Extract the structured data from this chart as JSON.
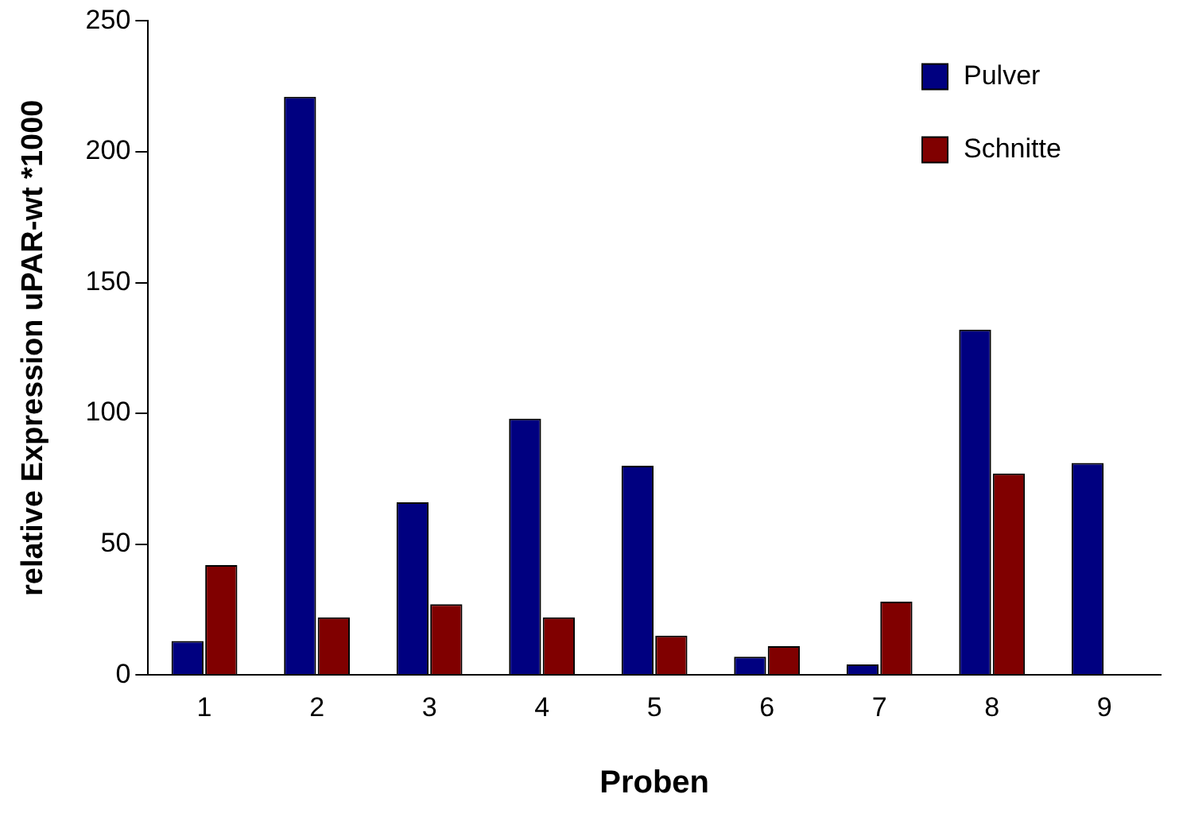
{
  "chart_data": {
    "type": "bar",
    "xlabel": "Proben",
    "ylabel": "relative Expression uPAR-wt *1000",
    "categories": [
      "1",
      "2",
      "3",
      "4",
      "5",
      "6",
      "7",
      "8",
      "9"
    ],
    "series": [
      {
        "name": "Pulver",
        "color": "#000080",
        "values": [
          13,
          221,
          66,
          98,
          80,
          7,
          4,
          132,
          81
        ]
      },
      {
        "name": "Schnitte",
        "color": "#800000",
        "values": [
          42,
          22,
          27,
          22,
          15,
          11,
          28,
          77,
          0
        ]
      }
    ],
    "ylim": [
      0,
      250
    ],
    "yticks": [
      0,
      50,
      100,
      150,
      200,
      250
    ],
    "grid": false,
    "legend": "top right"
  }
}
